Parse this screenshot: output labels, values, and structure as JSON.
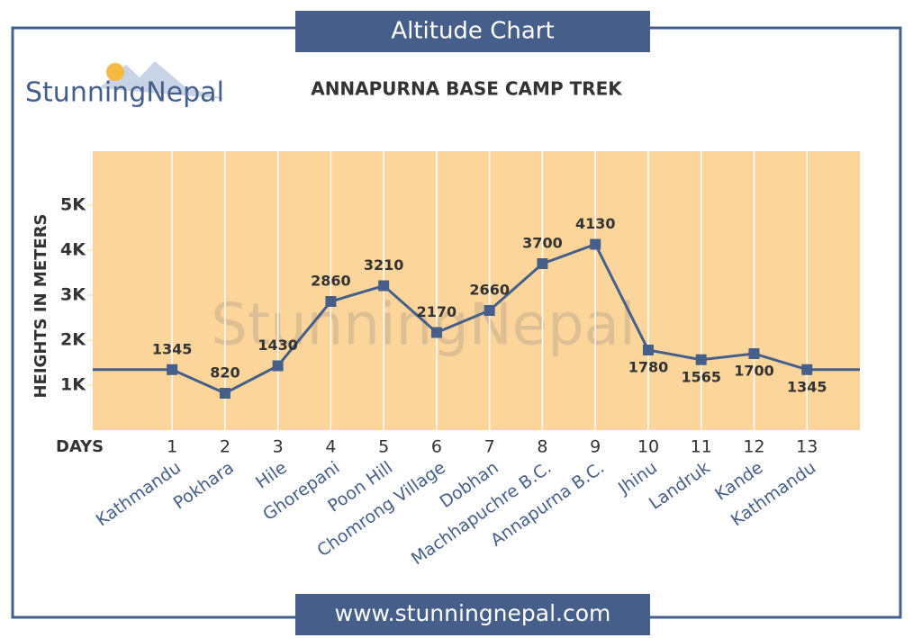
{
  "header": "Altitude Chart",
  "logo": "StunningNepal",
  "footer": "www.stunningnepal.com",
  "chart_data": {
    "type": "line",
    "title": "ANNAPURNA BASE CAMP TREK",
    "x_label": "DAYS",
    "y_label": "HEIGHTS IN METERS",
    "x": [
      1,
      2,
      3,
      4,
      5,
      6,
      7,
      8,
      9,
      10,
      11,
      12,
      13
    ],
    "stops": [
      "Kathmandu",
      "Pokhara",
      "Hile",
      "Ghorepani",
      "Poon Hill",
      "Chomrong Village",
      "Dobhan",
      "Machhapuchre B.C.",
      "Annapurna B.C.",
      "Jhinu",
      "Landruk",
      "Kande",
      "Kathmandu"
    ],
    "series": [
      {
        "name": "Altitude",
        "color": "#455f8a",
        "values": [
          1345,
          820,
          1430,
          2860,
          3210,
          2170,
          2660,
          3700,
          4130,
          1780,
          1565,
          1700,
          1345
        ]
      }
    ],
    "xlim": [
      -0.5,
      14
    ],
    "xticks": [
      1,
      2,
      3,
      4,
      5,
      6,
      7,
      8,
      9,
      10,
      11,
      12,
      13
    ],
    "ylim": [
      0,
      6200
    ],
    "yticks": [
      {
        "value": 1000,
        "label": "1K"
      },
      {
        "value": 2000,
        "label": "2K"
      },
      {
        "value": 3000,
        "label": "3K"
      },
      {
        "value": 4000,
        "label": "4K"
      },
      {
        "value": 5000,
        "label": "5K"
      }
    ],
    "plot_background": "#fcd59b",
    "grid": true
  }
}
